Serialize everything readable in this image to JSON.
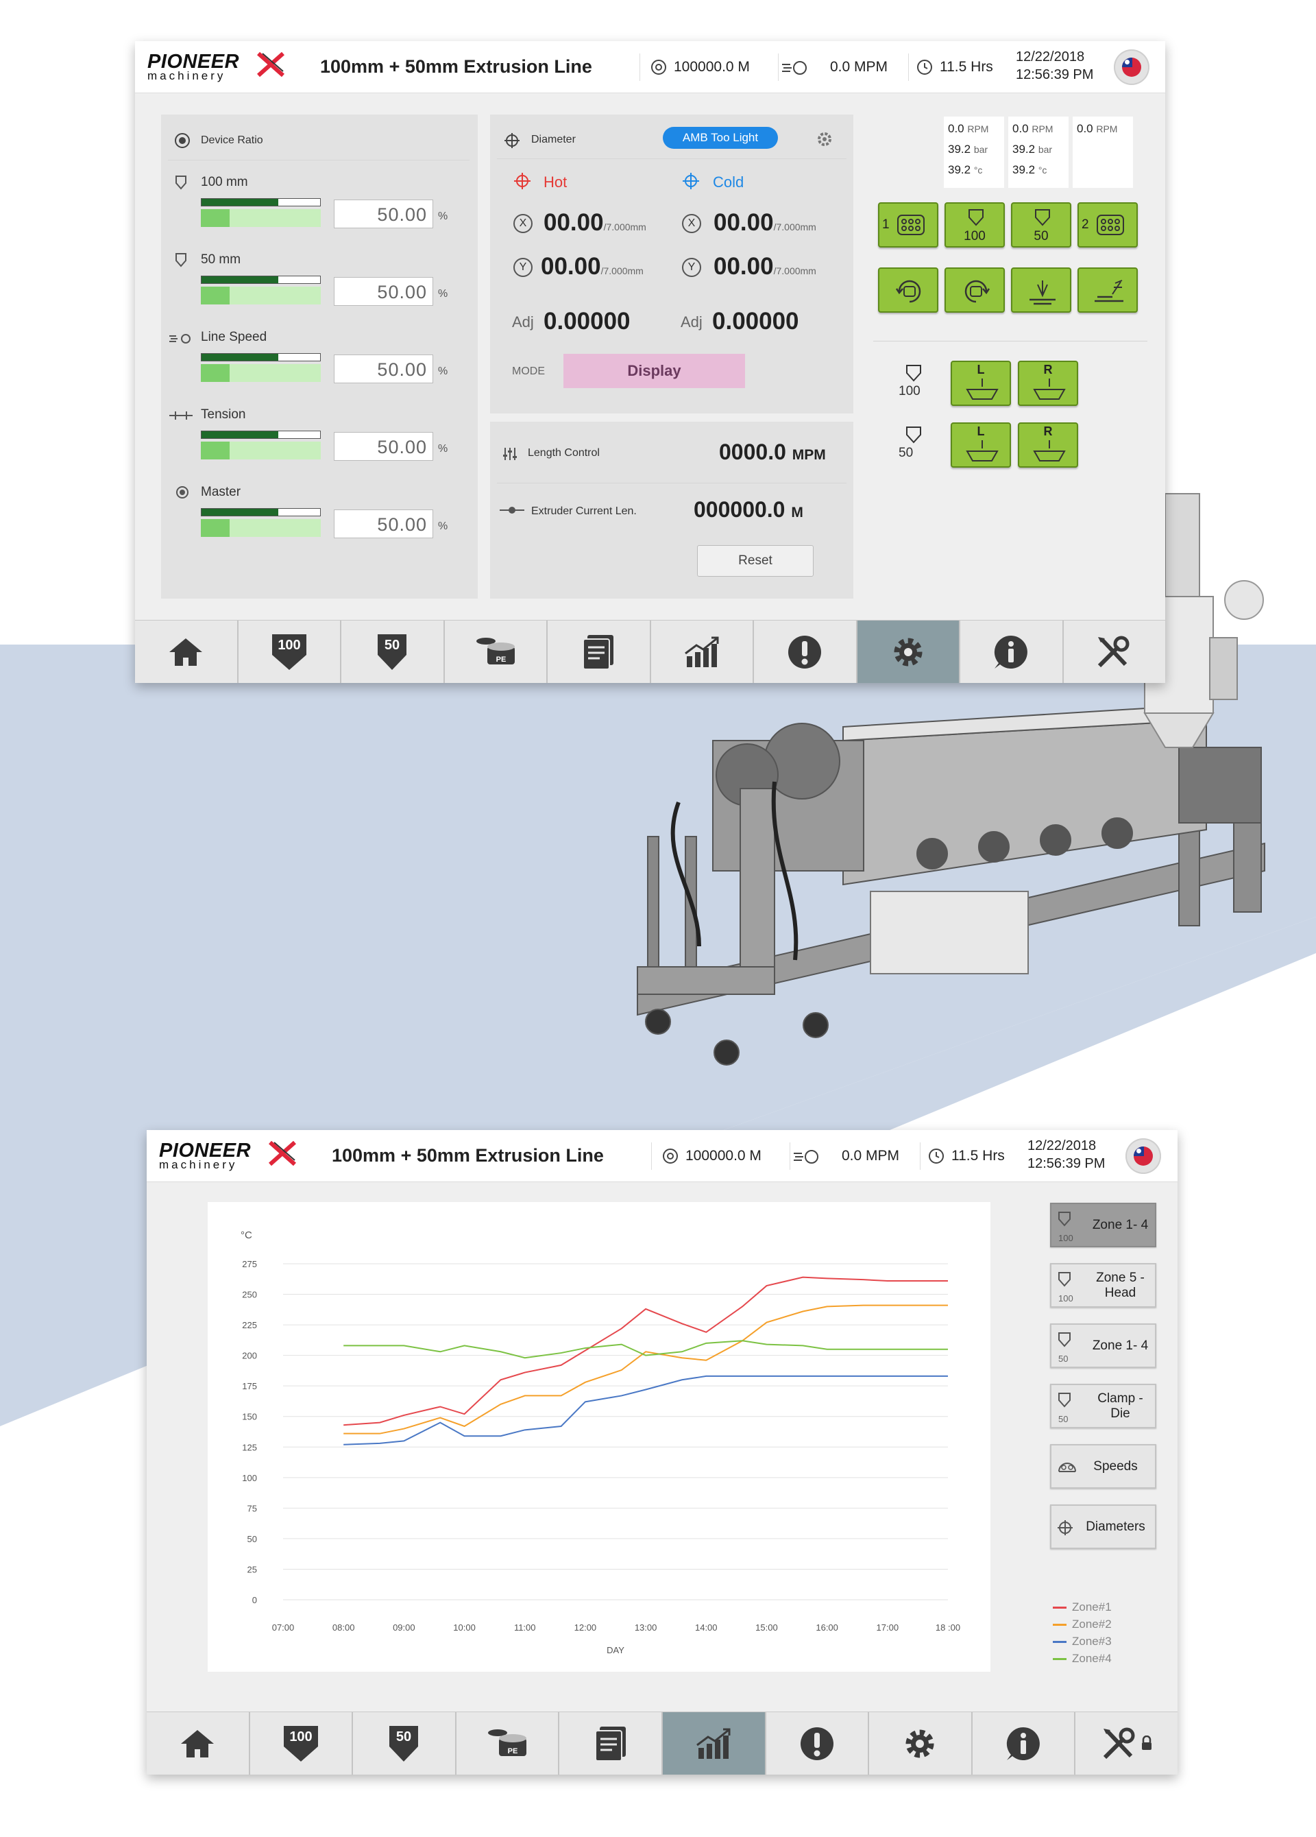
{
  "brand": {
    "line1": "PIONEER",
    "line2": "machinery"
  },
  "header": {
    "title": "100mm + 50mm Extrusion Line",
    "length": "100000.0 M",
    "speed": "0.0 MPM",
    "hours": "11.5 Hrs",
    "date": "12/22/2018",
    "time": "12:56:39 PM"
  },
  "device_ratio": {
    "title": "Device Ratio",
    "rows": [
      {
        "label": "100 mm",
        "value": "50.00",
        "unit": "%",
        "fill_top": 0.65,
        "fill_bottom": 0.24
      },
      {
        "label": "50 mm",
        "value": "50.00",
        "unit": "%",
        "fill_top": 0.65,
        "fill_bottom": 0.24
      },
      {
        "label": "Line Speed",
        "value": "50.00",
        "unit": "%",
        "fill_top": 0.65,
        "fill_bottom": 0.24
      },
      {
        "label": "Tension",
        "value": "50.00",
        "unit": "%",
        "fill_top": 0.65,
        "fill_bottom": 0.24
      },
      {
        "label": "Master",
        "value": "50.00",
        "unit": "%",
        "fill_top": 0.65,
        "fill_bottom": 0.24
      }
    ]
  },
  "diameter": {
    "title": "Diameter",
    "badge": "AMB Too Light",
    "hot_label": "Hot",
    "cold_label": "Cold",
    "hot_x": "00.00",
    "hot_y": "00.00",
    "cold_x": "00.00",
    "cold_y": "00.00",
    "tol": "/7.000mm",
    "x_axis": "X",
    "y_axis": "Y",
    "adj_label": "Adj",
    "hot_adj": "0.00000",
    "cold_adj": "0.00000",
    "mode_label": "MODE",
    "mode_value": "Display",
    "colors": {
      "hot": "#e53935",
      "cold": "#1e88e5",
      "badge": "#1e88e5",
      "mode": "#e8bcd8"
    }
  },
  "length": {
    "control_label": "Length Control",
    "control_value": "0000.0",
    "control_unit": "MPM",
    "current_label": "Extruder Current Len.",
    "current_value": "000000.0",
    "current_unit": "M",
    "reset": "Reset"
  },
  "indicators": [
    {
      "rpm": "0.0",
      "rpm_unit": "RPM",
      "bar": "39.2",
      "bar_unit": "bar",
      "temp": "39.2",
      "temp_unit": "°c"
    },
    {
      "rpm": "0.0",
      "rpm_unit": "RPM",
      "bar": "39.2",
      "bar_unit": "bar",
      "temp": "39.2",
      "temp_unit": "°c"
    },
    {
      "rpm": "0.0",
      "rpm_unit": "RPM"
    }
  ],
  "controls": {
    "row1": [
      {
        "pre": "1",
        "label": ""
      },
      {
        "pre": "",
        "label": "100"
      },
      {
        "pre": "",
        "label": "50"
      },
      {
        "pre": "2",
        "label": ""
      }
    ],
    "haul": [
      {
        "label": "100",
        "left": "L",
        "right": "R"
      },
      {
        "label": "50",
        "left": "L",
        "right": "R"
      }
    ],
    "accent": "#93c43c"
  },
  "nav": [
    {
      "name": "home"
    },
    {
      "name": "extruder-100",
      "label": "100"
    },
    {
      "name": "extruder-50",
      "label": "50"
    },
    {
      "name": "pe",
      "label": "PE"
    },
    {
      "name": "reports"
    },
    {
      "name": "trends"
    },
    {
      "name": "alarms"
    },
    {
      "name": "settings"
    },
    {
      "name": "info"
    },
    {
      "name": "tools"
    }
  ],
  "zone_buttons": [
    {
      "label": "Zone 1- 4",
      "sub": "100",
      "selected": true
    },
    {
      "label": "Zone 5 - Head",
      "sub": "100",
      "selected": false
    },
    {
      "label": "Zone 1- 4",
      "sub": "50",
      "selected": false
    },
    {
      "label": "Clamp - Die",
      "sub": "50",
      "selected": false
    },
    {
      "label": "Speeds",
      "sub": "",
      "selected": false
    },
    {
      "label": "Diameters",
      "sub": "",
      "selected": false
    }
  ],
  "chart_data": {
    "type": "line",
    "title": "",
    "xlabel": "DAY",
    "ylabel": "°C",
    "ylim": [
      0,
      275
    ],
    "yticks": [
      0,
      25,
      50,
      75,
      100,
      125,
      150,
      175,
      200,
      225,
      250,
      275
    ],
    "categories": [
      "07:00",
      "08:00",
      "09:00",
      "10:00",
      "11:00",
      "12:00",
      "13:00",
      "14:00",
      "15:00",
      "16:00",
      "17:00",
      "18 :00"
    ],
    "x": [
      1.0,
      1.6,
      2.0,
      2.6,
      3.0,
      3.6,
      4.0,
      4.6,
      5.0,
      5.6,
      6.0,
      6.6,
      7.0,
      7.6,
      8.0,
      8.6,
      9.0,
      9.6,
      10.0,
      11.0
    ],
    "series": [
      {
        "name": "Zone#1",
        "color": "#e5484d",
        "values": [
          143,
          145,
          151,
          158,
          152,
          180,
          186,
          192,
          204,
          222,
          238,
          226,
          219,
          240,
          257,
          264,
          263,
          262,
          261,
          261
        ]
      },
      {
        "name": "Zone#2",
        "color": "#f5a02a",
        "values": [
          136,
          136,
          140,
          149,
          142,
          160,
          167,
          167,
          178,
          188,
          203,
          198,
          196,
          212,
          227,
          236,
          240,
          241,
          241,
          241
        ]
      },
      {
        "name": "Zone#3",
        "color": "#4a78c5",
        "values": [
          127,
          128,
          130,
          145,
          134,
          134,
          139,
          142,
          162,
          167,
          172,
          180,
          183,
          183,
          183,
          183,
          183,
          183,
          183,
          183
        ]
      },
      {
        "name": "Zone#4",
        "color": "#7cc243",
        "values": [
          208,
          208,
          208,
          203,
          208,
          203,
          198,
          202,
          206,
          209,
          200,
          203,
          210,
          212,
          209,
          208,
          205,
          205,
          205,
          205
        ]
      }
    ],
    "grid": true,
    "legend": "bottom-right"
  }
}
